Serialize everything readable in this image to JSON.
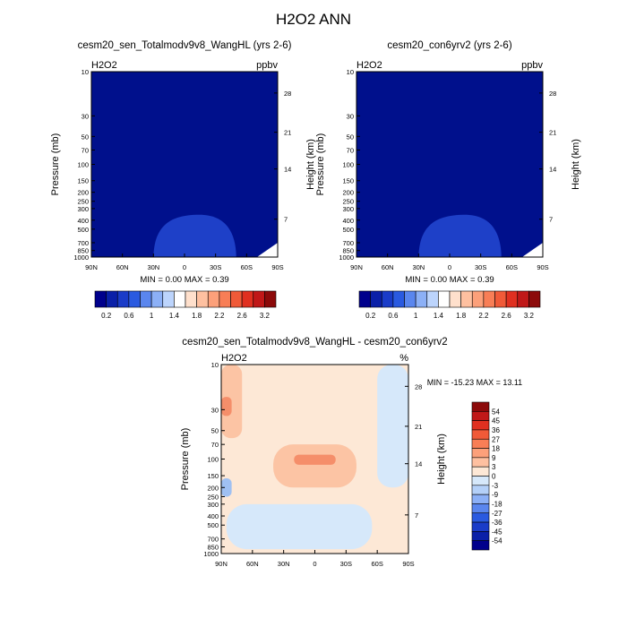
{
  "figure": {
    "main_title": "H2O2 ANN"
  },
  "colors": {
    "dark_blue": "#000c8c",
    "mid_blue": "#1e40c8",
    "light_fill": "#fde8d6"
  },
  "chart_data": [
    {
      "type": "heatmap",
      "title": "cesm20_sen_Totalmodv9v8_WangHL (yrs 2-6)",
      "corner_left": "H2O2",
      "corner_right": "ppbv",
      "ylabel": "Pressure (mb)",
      "ylabel_right": "Height (km)",
      "xticks": [
        "90N",
        "60N",
        "30N",
        "0",
        "30S",
        "60S",
        "90S"
      ],
      "xlim": [
        90,
        -90
      ],
      "yticks": [
        "10",
        "30",
        "50",
        "70",
        "100",
        "150",
        "200",
        "250",
        "300",
        "400",
        "500",
        "700",
        "850",
        "1000"
      ],
      "ylim": [
        1000,
        10
      ],
      "yscale": "log",
      "yticks_right": [
        "28",
        "21",
        "14",
        "7"
      ],
      "stats": "MIN =   0.00   MAX =   0.39",
      "colorbar": {
        "labels": [
          "0.2",
          "0.6",
          "1",
          "1.4",
          "1.8",
          "2.2",
          "2.6",
          "3.2"
        ],
        "colors": [
          "#00008c",
          "#0a20a8",
          "#1a3cc8",
          "#2a5ae0",
          "#5a86ee",
          "#8cb0f6",
          "#bcd4fc",
          "#ffffff",
          "#ffe0cc",
          "#fec0a0",
          "#fca07a",
          "#f87e56",
          "#f05a38",
          "#e03020",
          "#c01818",
          "#8c0a0a"
        ]
      },
      "field": {
        "background": "#00108c",
        "features": [
          {
            "name": "lower troposphere maximum",
            "color": "#1e40c8",
            "lat_range": [
              30,
              -50
            ],
            "top_pressure": 350
          }
        ]
      }
    },
    {
      "type": "heatmap",
      "title": "cesm20_con6yrv2 (yrs 2-6)",
      "corner_left": "H2O2",
      "corner_right": "ppbv",
      "ylabel": "Pressure (mb)",
      "ylabel_right": "Height (km)",
      "xticks": [
        "90N",
        "60N",
        "30N",
        "0",
        "30S",
        "60S",
        "90S"
      ],
      "xlim": [
        90,
        -90
      ],
      "yticks": [
        "10",
        "30",
        "50",
        "70",
        "100",
        "150",
        "200",
        "250",
        "300",
        "400",
        "500",
        "700",
        "850",
        "1000"
      ],
      "ylim": [
        1000,
        10
      ],
      "yscale": "log",
      "yticks_right": [
        "28",
        "21",
        "14",
        "7"
      ],
      "stats": "MIN =   0.00   MAX =   0.39",
      "colorbar": {
        "labels": [
          "0.2",
          "0.6",
          "1",
          "1.4",
          "1.8",
          "2.2",
          "2.6",
          "3.2"
        ],
        "colors": [
          "#00008c",
          "#0a20a8",
          "#1a3cc8",
          "#2a5ae0",
          "#5a86ee",
          "#8cb0f6",
          "#bcd4fc",
          "#ffffff",
          "#ffe0cc",
          "#fec0a0",
          "#fca07a",
          "#f87e56",
          "#f05a38",
          "#e03020",
          "#c01818",
          "#8c0a0a"
        ]
      },
      "field": {
        "background": "#00108c",
        "features": [
          {
            "name": "lower troposphere maximum",
            "color": "#1e40c8",
            "lat_range": [
              30,
              -50
            ],
            "top_pressure": 350
          }
        ]
      }
    },
    {
      "type": "heatmap",
      "title": "cesm20_sen_Totalmodv9v8_WangHL - cesm20_con6yrv2",
      "corner_left": "H2O2",
      "corner_right": "%",
      "ylabel": "Pressure (mb)",
      "ylabel_right": "Height (km)",
      "xticks": [
        "90N",
        "60N",
        "30N",
        "0",
        "30S",
        "60S",
        "90S"
      ],
      "xlim": [
        90,
        -90
      ],
      "yticks": [
        "10",
        "30",
        "50",
        "70",
        "100",
        "150",
        "200",
        "250",
        "300",
        "400",
        "500",
        "700",
        "850",
        "1000"
      ],
      "ylim": [
        1000,
        10
      ],
      "yscale": "log",
      "yticks_right": [
        "28",
        "21",
        "14",
        "7"
      ],
      "stats": "MIN = -15.23  MAX =  13.11",
      "colorbar": {
        "labels": [
          "54",
          "45",
          "36",
          "27",
          "18",
          "9",
          "3",
          "0",
          "-3",
          "-9",
          "-18",
          "-27",
          "-36",
          "-45",
          "-54"
        ],
        "colors": [
          "#8c0a0a",
          "#c01818",
          "#e03020",
          "#f05a38",
          "#f87e56",
          "#fca07a",
          "#fec0a0",
          "#fde8d6",
          "#d6e8fa",
          "#b4d0f8",
          "#8cb0f6",
          "#5a86ee",
          "#2a5ae0",
          "#1a3cc8",
          "#0a20a8",
          "#00008c"
        ]
      },
      "field": {
        "background": "#fde8d6",
        "features": [
          {
            "name": "upper positive arch",
            "color": "#fcc4a4",
            "lat_range": [
              40,
              -40
            ],
            "top_pressure": 70,
            "bottom_pressure": 200
          },
          {
            "name": "upper positive core",
            "color": "#f58e6a",
            "lat_range": [
              20,
              -20
            ],
            "top_pressure": 90,
            "bottom_pressure": 115
          },
          {
            "name": "NH high-latitude positive",
            "color": "#fcc4a4",
            "lat_range": [
              90,
              70
            ],
            "top_pressure": 10,
            "bottom_pressure": 60
          },
          {
            "name": "NH high-latitude stratospheric max",
            "color": "#f58e6a",
            "lat_range": [
              90,
              80
            ],
            "top_pressure": 22,
            "bottom_pressure": 35
          },
          {
            "name": "SH high-latitude negative",
            "color": "#d6e8fa",
            "lat_range": [
              -60,
              -90
            ],
            "top_pressure": 10,
            "bottom_pressure": 200
          },
          {
            "name": "NH polar tropopause negative",
            "color": "#9fc0f2",
            "lat_range": [
              90,
              80
            ],
            "top_pressure": 160,
            "bottom_pressure": 250
          },
          {
            "name": "lower troposphere negative",
            "color": "#d6e8fa",
            "lat_range": [
              85,
              -55
            ],
            "top_pressure": 300,
            "bottom_pressure": 900
          }
        ]
      }
    }
  ]
}
